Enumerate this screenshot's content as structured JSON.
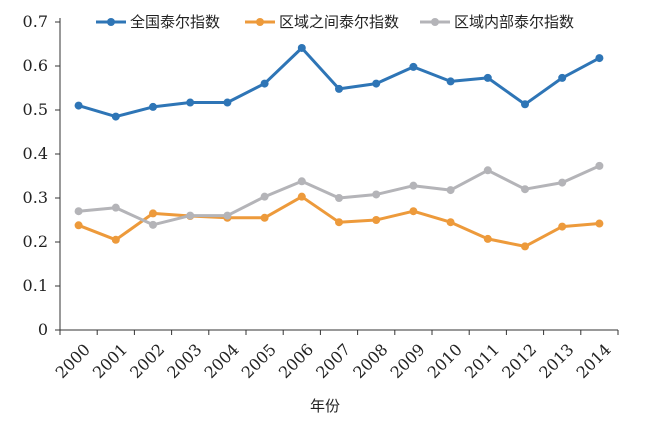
{
  "chart_data": {
    "type": "line",
    "title": "",
    "xlabel": "年份",
    "ylabel": "",
    "ylim": [
      0,
      0.7
    ],
    "yticks": [
      0,
      0.1,
      0.2,
      0.3,
      0.4,
      0.5,
      0.6,
      0.7
    ],
    "ytick_labels": [
      "0",
      "0.1",
      "0.2",
      "0.3",
      "0.4",
      "0.5",
      "0.6",
      "0.7"
    ],
    "grid": false,
    "legend_position": "top",
    "categories": [
      "2000",
      "2001",
      "2002",
      "2003",
      "2004",
      "2005",
      "2006",
      "2007",
      "2008",
      "2009",
      "2010",
      "2011",
      "2012",
      "2013",
      "2014"
    ],
    "series": [
      {
        "name": "全国泰尔指数",
        "color": "#2e75b6",
        "values": [
          0.51,
          0.485,
          0.507,
          0.517,
          0.517,
          0.56,
          0.641,
          0.548,
          0.56,
          0.598,
          0.565,
          0.573,
          0.513,
          0.573,
          0.618
        ]
      },
      {
        "name": "区域之间泰尔指数",
        "color": "#ed9a3b",
        "values": [
          0.238,
          0.205,
          0.265,
          0.259,
          0.255,
          0.255,
          0.303,
          0.245,
          0.25,
          0.27,
          0.245,
          0.207,
          0.19,
          0.235,
          0.242
        ]
      },
      {
        "name": "区域内部泰尔指数",
        "color": "#b4b4b8",
        "values": [
          0.27,
          0.278,
          0.239,
          0.26,
          0.26,
          0.303,
          0.338,
          0.3,
          0.308,
          0.328,
          0.318,
          0.363,
          0.32,
          0.335,
          0.373
        ]
      }
    ]
  }
}
